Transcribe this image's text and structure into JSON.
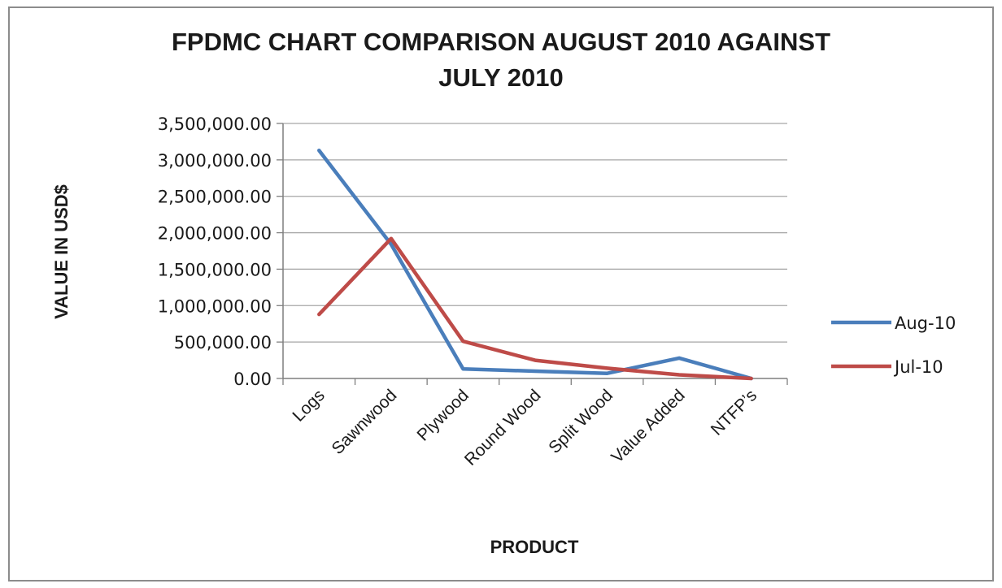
{
  "chart_data": {
    "type": "line",
    "title_lines": [
      "FPDMC CHART COMPARISON AUGUST 2010 AGAINST",
      "JULY 2010"
    ],
    "xlabel": "PRODUCT",
    "ylabel": "VALUE IN USD$",
    "categories": [
      "Logs",
      "Sawnwood",
      "Plywood",
      "Round Wood",
      "Split Wood",
      "Value Added",
      "NTFP’s"
    ],
    "ylim": [
      0,
      3500000
    ],
    "yticks": [
      0,
      500000,
      1000000,
      1500000,
      2000000,
      2500000,
      3000000,
      3500000
    ],
    "ytick_labels": [
      "0.00",
      "500,000.00",
      "1,000,000.00",
      "1,500,000.00",
      "2,000,000.00",
      "2,500,000.00",
      "3,000,000.00",
      "3,500,000.00"
    ],
    "grid": true,
    "legend_position": "right",
    "series": [
      {
        "name": "Aug-10",
        "color": "#4a7ebb",
        "values": [
          3130000,
          1840000,
          130000,
          100000,
          70000,
          280000,
          0
        ]
      },
      {
        "name": "Jul-10",
        "color": "#be4b48",
        "values": [
          880000,
          1920000,
          510000,
          250000,
          140000,
          50000,
          0
        ]
      }
    ]
  }
}
